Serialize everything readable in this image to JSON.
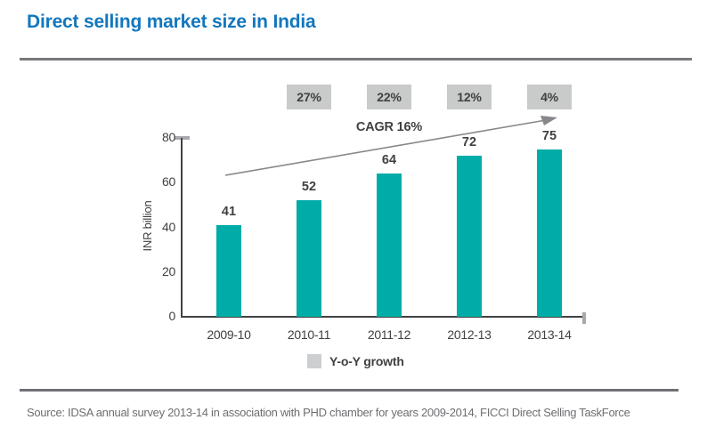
{
  "header": {
    "title": "Direct selling market size in India"
  },
  "chart_data": {
    "type": "bar",
    "title": "Direct selling market size in India",
    "categories": [
      "2009-10",
      "2010-11",
      "2011-12",
      "2012-13",
      "2013-14"
    ],
    "values": [
      41,
      52,
      64,
      72,
      75
    ],
    "yoy_growth_labels": [
      "27%",
      "22%",
      "12%",
      "4%"
    ],
    "annotation": "CAGR 16%",
    "xlabel": "",
    "ylabel": "INR billion",
    "ylim": [
      0,
      80
    ],
    "yticks": [
      0,
      20,
      40,
      60,
      80
    ],
    "grid": false,
    "bar_color": "#00ACA8",
    "growth_box_color": "#C9CACA",
    "legend_position": "bottom",
    "legend": [
      {
        "label": "Y-o-Y growth",
        "swatch_color": "#CDCECF"
      }
    ]
  },
  "legend": {
    "yoy_label": "Y-o-Y growth"
  },
  "footer": {
    "source": "Source: IDSA annual survey 2013-14  in association with PHD chamber for years 2009-2014, FICCI Direct Selling TaskForce"
  },
  "colors": {
    "title_blue": "#1377BD",
    "bar_teal": "#00ACA8",
    "growth_box_gray": "#C9CACA",
    "legend_swatch_gray": "#CDCECF",
    "axis_dark": "#414042",
    "tick_gray": "#A7A9AC",
    "arrow_gray": "#87888C",
    "rule_gray": "#77787B",
    "source_gray": "#6D6E71"
  }
}
